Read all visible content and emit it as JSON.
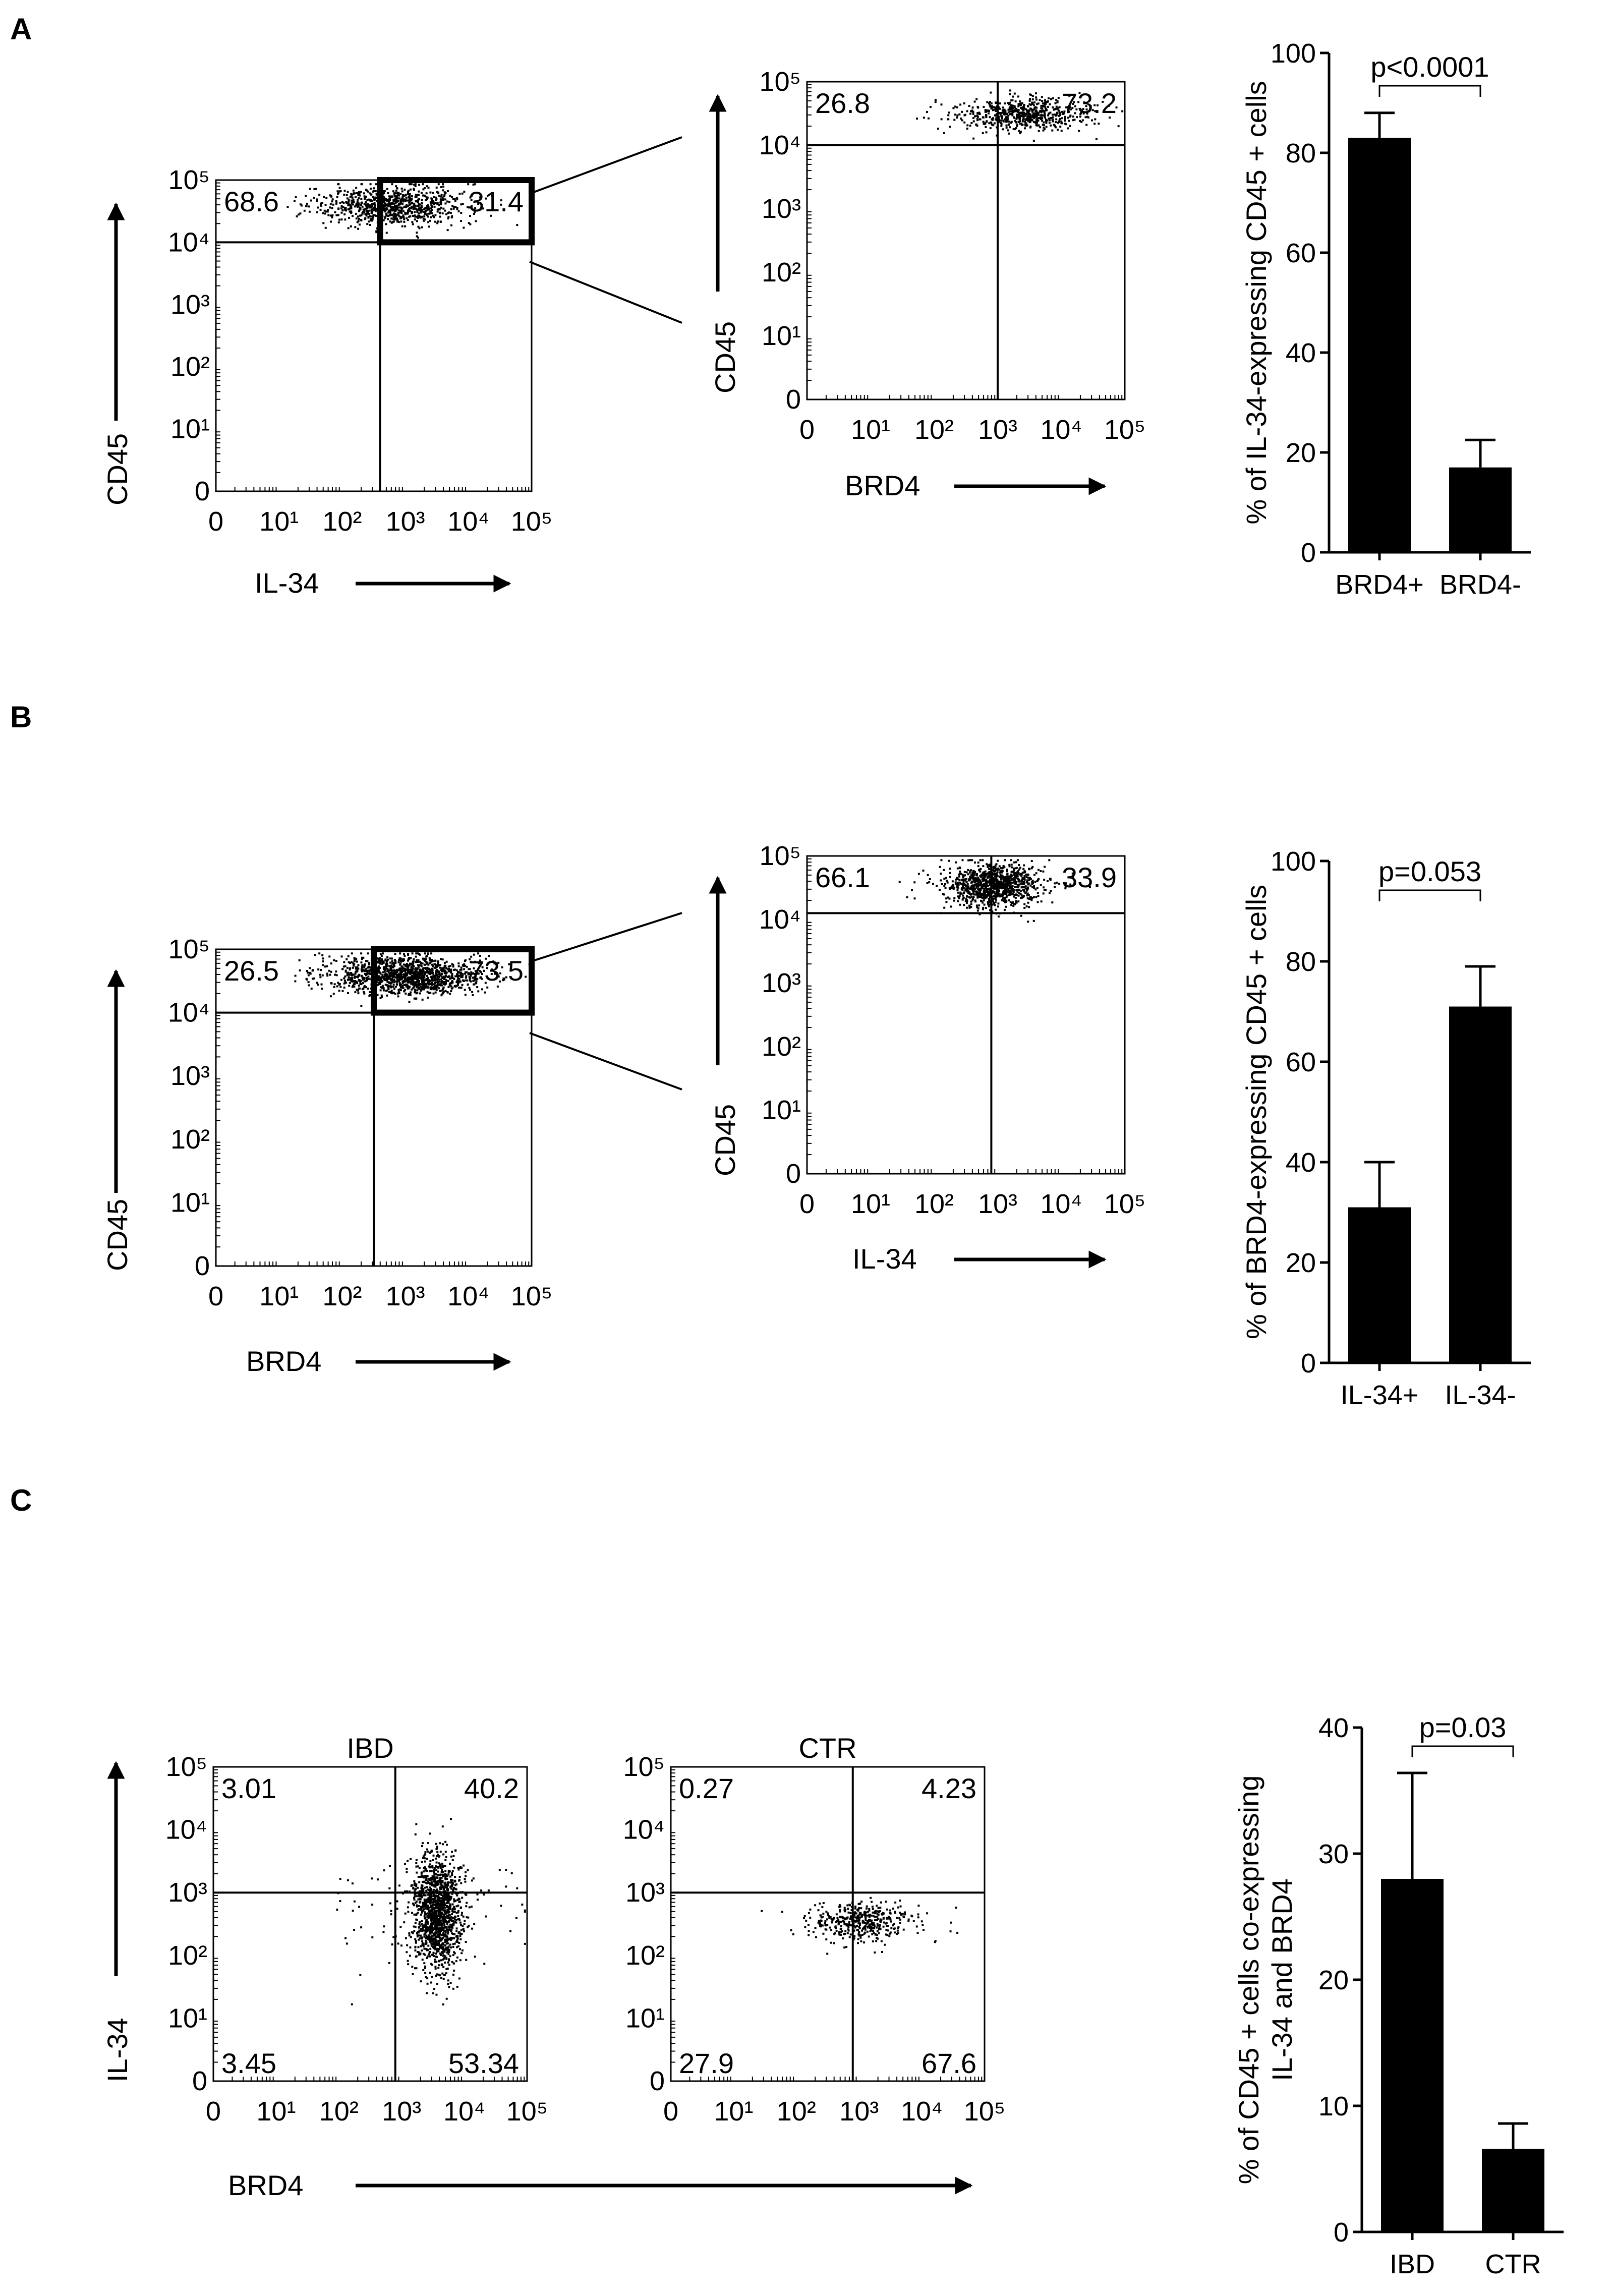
{
  "panels": [
    {
      "label": "A",
      "dot_main": {
        "x_label": "IL-34",
        "y_label": "CD45",
        "x_ticks": [
          "0",
          "10¹",
          "10²",
          "10³",
          "10⁴",
          "10⁵"
        ],
        "y_ticks": [
          "0",
          "10¹",
          "10²",
          "10³",
          "10⁴",
          "10⁵"
        ],
        "gate_x_decade": 2.6,
        "gate_y_decade": 4.0,
        "q_top_left": "68.6",
        "q_top_right": "31.4",
        "cluster": {
          "x_decade": 2.8,
          "y_decade": 4.6,
          "count": 900,
          "spread_x": 0.55,
          "spread_y": 0.16
        }
      },
      "dot_zoom": {
        "x_label": "BRD4",
        "y_label": "CD45",
        "x_ticks": [
          "0",
          "10¹",
          "10²",
          "10³",
          "10⁴",
          "10⁵"
        ],
        "y_ticks": [
          "0",
          "10¹",
          "10²",
          "10³",
          "10⁴",
          "10⁵"
        ],
        "gate_x_decade": 3.0,
        "gate_y_decade": 4.0,
        "q_top_left": "26.8",
        "q_top_right": "73.2",
        "cluster": {
          "x_decade": 3.35,
          "y_decade": 4.5,
          "count": 650,
          "spread_x": 0.45,
          "spread_y": 0.13
        }
      }
    },
    {
      "label": "B",
      "dot_main": {
        "x_label": "BRD4",
        "y_label": "CD45",
        "x_ticks": [
          "0",
          "10¹",
          "10²",
          "10³",
          "10⁴",
          "10⁵"
        ],
        "y_ticks": [
          "0",
          "10¹",
          "10²",
          "10³",
          "10⁴",
          "10⁵"
        ],
        "gate_x_decade": 2.5,
        "gate_y_decade": 4.0,
        "q_top_left": "26.5",
        "q_top_right": "73.5",
        "cluster": {
          "x_decade": 3.0,
          "y_decade": 4.6,
          "count": 1400,
          "spread_x": 0.6,
          "spread_y": 0.15
        }
      },
      "dot_zoom": {
        "x_label": "IL-34",
        "y_label": "CD45",
        "x_ticks": [
          "0",
          "10¹",
          "10²",
          "10³",
          "10⁴",
          "10⁵"
        ],
        "y_ticks": [
          "0",
          "10¹",
          "10²",
          "10³",
          "10⁴",
          "10⁵"
        ],
        "gate_x_decade": 2.9,
        "gate_y_decade": 4.1,
        "q_top_left": "66.1",
        "q_top_right": "33.9",
        "cluster": {
          "x_decade": 2.9,
          "y_decade": 4.55,
          "count": 1100,
          "spread_x": 0.35,
          "spread_y": 0.17
        }
      }
    },
    {
      "label": "C",
      "shared_x_label": "BRD4",
      "shared_y_label": "IL-34",
      "dots": [
        {
          "title": "IBD",
          "x_ticks": [
            "0",
            "10¹",
            "10²",
            "10³",
            "10⁴",
            "10⁵"
          ],
          "y_ticks": [
            "0",
            "10¹",
            "10²",
            "10³",
            "10⁴",
            "10⁵"
          ],
          "gate_x_decade": 2.9,
          "gate_y_decade": 3.0,
          "q_top_left": "3.01",
          "q_top_right": "40.2",
          "q_bottom_left": "3.45",
          "q_bottom_right": "53.34",
          "cluster": {
            "x_decade": 3.55,
            "y_decade": 2.7,
            "count": 1500,
            "spread_x": 0.2,
            "spread_y": 0.45
          }
        },
        {
          "title": "CTR",
          "x_ticks": [
            "0",
            "10¹",
            "10²",
            "10³",
            "10⁴",
            "10⁵"
          ],
          "y_ticks": [
            "0",
            "10¹",
            "10²",
            "10³",
            "10⁴",
            "10⁵"
          ],
          "gate_x_decade": 2.9,
          "gate_y_decade": 3.0,
          "q_top_left": "0.27",
          "q_top_right": "4.23",
          "q_bottom_left": "27.9",
          "q_bottom_right": "67.6",
          "cluster": {
            "x_decade": 3.0,
            "y_decade": 2.55,
            "count": 450,
            "spread_x": 0.35,
            "spread_y": 0.15
          }
        }
      ]
    }
  ],
  "chart_data": [
    {
      "type": "bar",
      "panel": "A",
      "categories": [
        "BRD4+",
        "BRD4-"
      ],
      "values": [
        83,
        17
      ],
      "errors": [
        5,
        5.5
      ],
      "ylabel": "% of IL-34-expressing CD45 + cells",
      "ylim": [
        0,
        100
      ],
      "y_ticks": [
        0,
        20,
        40,
        60,
        80,
        100
      ],
      "annotation": "p<0.0001"
    },
    {
      "type": "bar",
      "panel": "B",
      "categories": [
        "IL-34+",
        "IL-34-"
      ],
      "values": [
        31,
        71
      ],
      "errors": [
        9,
        8
      ],
      "ylabel": "% of BRD4-expressing CD45 + cells",
      "ylim": [
        0,
        100
      ],
      "y_ticks": [
        0,
        20,
        40,
        60,
        80,
        100
      ],
      "annotation": "p=0.053"
    },
    {
      "type": "bar",
      "panel": "C",
      "categories": [
        "IBD",
        "CTR"
      ],
      "values": [
        28,
        6.6
      ],
      "errors": [
        8.4,
        2
      ],
      "ylabel_lines": [
        "% of CD45 + cells co-expressing",
        "IL-34 and BRD4"
      ],
      "ylim": [
        0,
        40
      ],
      "y_ticks": [
        0,
        10,
        20,
        30,
        40
      ],
      "annotation": "p=0.03"
    }
  ]
}
